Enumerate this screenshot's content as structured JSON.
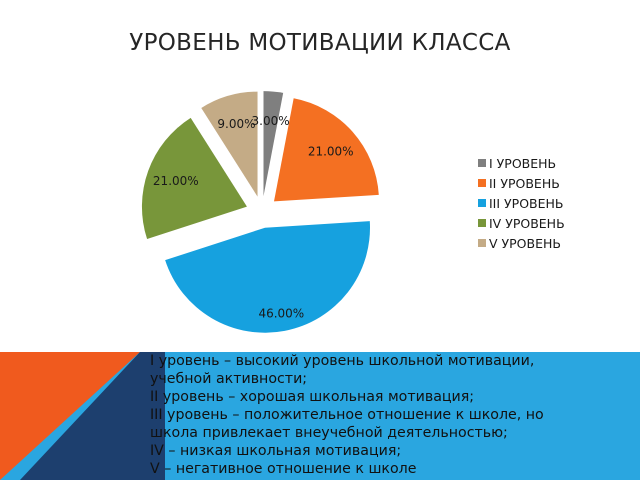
{
  "chart_data": {
    "type": "pie",
    "title": "УРОВЕНЬ МОТИВАЦИИ КЛАССА",
    "categories": [
      "I УРОВЕНЬ",
      "II УРОВЕНЬ",
      "III УРОВЕНЬ",
      "IV УРОВЕНЬ",
      "V УРОВЕНЬ"
    ],
    "values": [
      3,
      21,
      46,
      21,
      9
    ],
    "data_labels": [
      "3.00%",
      "21.00%",
      "46.00%",
      "21.00%",
      "9.00%"
    ],
    "colors": [
      "#7f7f7f",
      "#f47022",
      "#16a1df",
      "#78963a",
      "#c4ab86"
    ],
    "exploded": true,
    "legend_position": "right"
  },
  "description": {
    "lines": [
      "I уровень – высокий уровень школьной мотивации,",
      "учебной активности;",
      "II уровень – хорошая школьная мотивация;",
      "III уровень – положительное отношение к школе, но",
      "школа привлекает внеучебной деятельностью;",
      "IV – низкая школьная мотивация;",
      "V – негативное отношение к школе"
    ]
  },
  "decor_colors": {
    "orange": "#f05a1e",
    "blue": "#2aa6e0",
    "navy": "#1d3f6e"
  }
}
